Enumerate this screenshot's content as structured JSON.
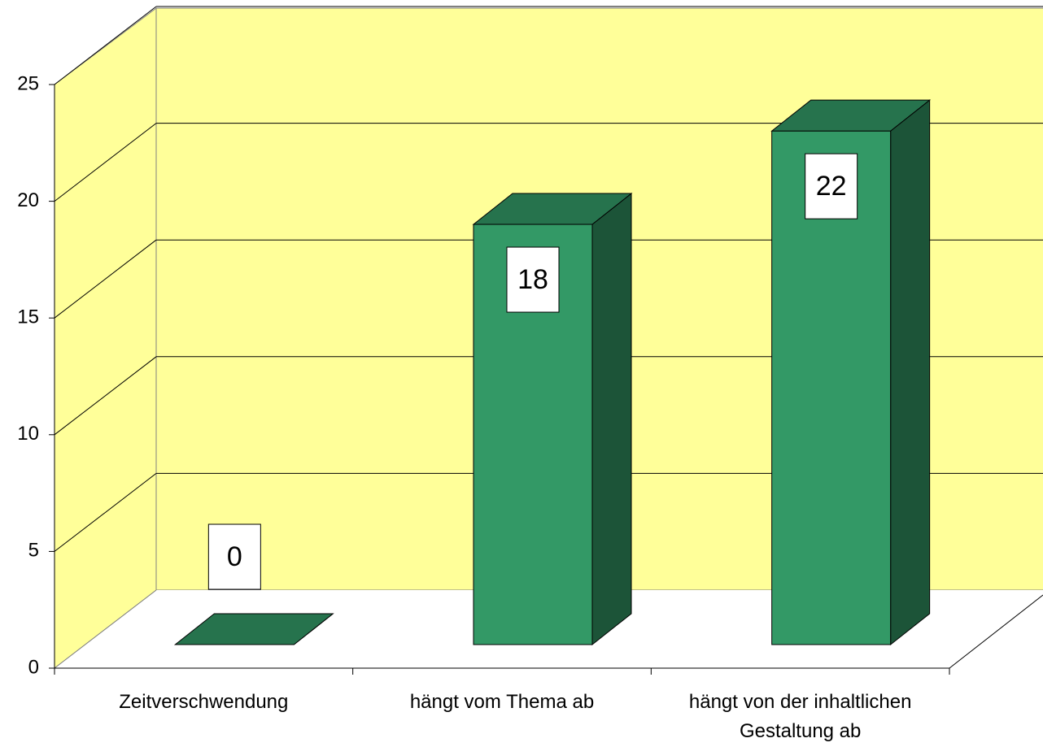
{
  "chart_data": {
    "type": "bar",
    "categories": [
      "Zeitverschwendung",
      "hängt vom Thema ab",
      "hängt von der inhaltlichen Gestaltung ab"
    ],
    "values": [
      0,
      18,
      22
    ],
    "color": "#339966",
    "ylim": [
      0,
      25
    ],
    "yticks": [
      0,
      5,
      10,
      15,
      20,
      25
    ],
    "grid": true
  }
}
